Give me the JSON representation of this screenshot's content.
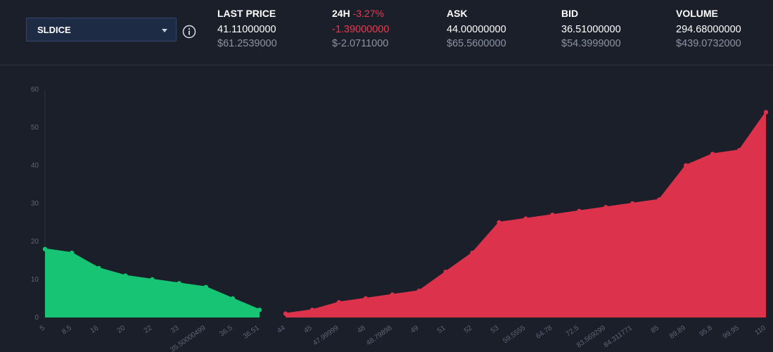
{
  "market": {
    "name": "SLDICE"
  },
  "stats": {
    "last_price": {
      "label": "LAST PRICE",
      "value": "41.11000000",
      "usd": "$61.2539000"
    },
    "change_24h": {
      "label": "24H",
      "percent": "-3.27%",
      "value": "-1.39000000",
      "usd": "$-2.0711000"
    },
    "ask": {
      "label": "ASK",
      "value": "44.00000000",
      "usd": "$65.5600000"
    },
    "bid": {
      "label": "BID",
      "value": "36.51000000",
      "usd": "$54.3999000"
    },
    "volume": {
      "label": "VOLUME",
      "value": "294.68000000",
      "usd": "$439.0732000"
    }
  },
  "colors": {
    "bid": "#17c474",
    "ask": "#dc324c",
    "background": "#1b1f2a"
  },
  "chart_data": {
    "type": "area",
    "title": "",
    "ylim": [
      0,
      60
    ],
    "yticks": [
      "0",
      "10",
      "20",
      "30",
      "40",
      "50",
      "60"
    ],
    "bids": {
      "x_labels": [
        "5",
        "8.5",
        "16",
        "20",
        "22",
        "33",
        "35.50000499",
        "36.5",
        "36.51"
      ],
      "values": [
        18,
        17,
        13,
        11,
        10,
        9,
        8,
        5,
        2
      ]
    },
    "asks": {
      "x_labels": [
        "44",
        "45",
        "47.99999",
        "48",
        "48.79898",
        "49",
        "51",
        "52",
        "53",
        "59.5555",
        "64.78",
        "72.5",
        "83.569299",
        "84.311771",
        "85",
        "89.89",
        "95.8",
        "99.95",
        "110"
      ],
      "values": [
        1,
        2,
        4,
        5,
        6,
        7,
        12,
        17,
        25,
        26,
        27,
        28,
        29,
        30,
        31,
        40,
        43,
        44,
        54
      ]
    }
  }
}
